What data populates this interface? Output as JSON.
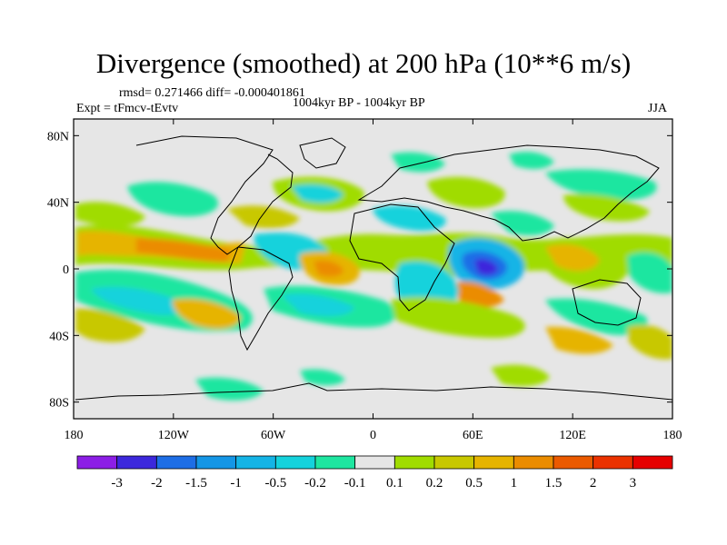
{
  "chart_data": {
    "type": "heatmap",
    "title": "Divergence (smoothed) at 200 hPa (10**6 m/s)",
    "stats": "rmsd= 0.271466 diff= -0.000401861",
    "experiment": "Expt = tFmcv-tEvtv",
    "period": "1004kyr BP - 1004kyr BP",
    "season": "JJA",
    "x_ticks": [
      {
        "lon": -180,
        "label": "180"
      },
      {
        "lon": -120,
        "label": "120W"
      },
      {
        "lon": -60,
        "label": "60W"
      },
      {
        "lon": 0,
        "label": "0"
      },
      {
        "lon": 60,
        "label": "60E"
      },
      {
        "lon": 120,
        "label": "120E"
      },
      {
        "lon": 180,
        "label": "180"
      }
    ],
    "y_ticks": [
      {
        "lat": 80,
        "label": "80N"
      },
      {
        "lat": 40,
        "label": "40N"
      },
      {
        "lat": 0,
        "label": "0"
      },
      {
        "lat": -40,
        "label": "40S"
      },
      {
        "lat": -80,
        "label": "80S"
      }
    ],
    "xlim": [
      -180,
      180
    ],
    "ylim": [
      -90,
      90
    ],
    "colorbar": {
      "colors": [
        "#8c1ee6",
        "#3c28dc",
        "#1e6ee6",
        "#1496e6",
        "#14b4e6",
        "#14d2dc",
        "#1ee6a0",
        "#e6e6e6",
        "#a0dc00",
        "#c8c800",
        "#e6b400",
        "#eb8c00",
        "#eb5a00",
        "#eb3200",
        "#e60000"
      ],
      "labels": [
        "-3",
        "-2",
        "-1.5",
        "-1",
        "-0.5",
        "-0.2",
        "-0.1",
        "0.1",
        "0.2",
        "0.5",
        "1",
        "1.5",
        "2",
        "3"
      ]
    },
    "background_color": "#e6e6e6"
  }
}
